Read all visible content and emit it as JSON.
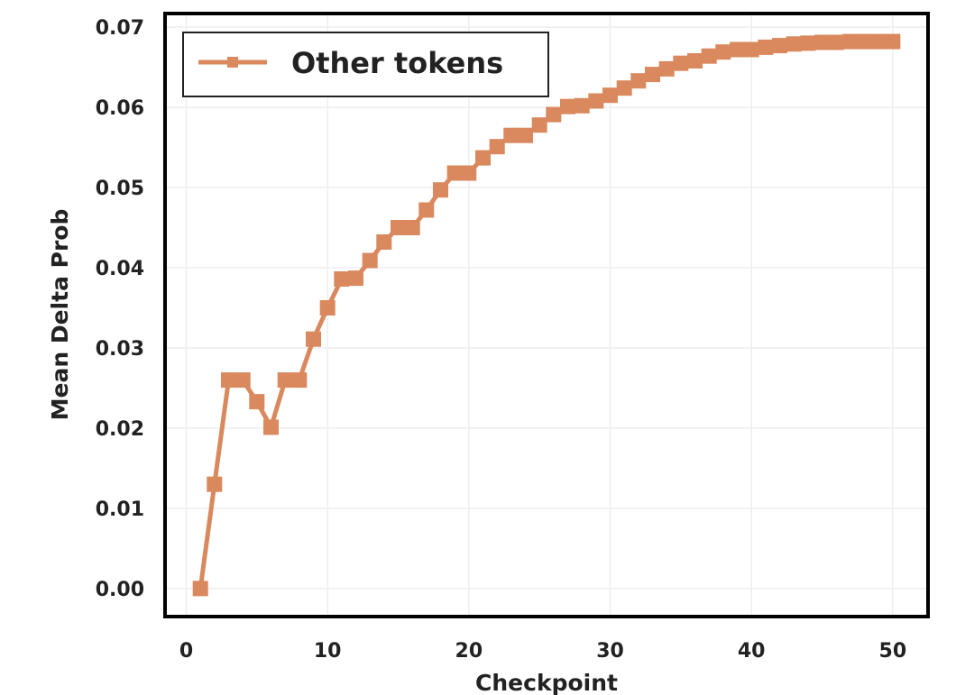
{
  "chart_data": {
    "type": "line",
    "xlabel": "Checkpoint",
    "ylabel": "Mean Delta Prob",
    "xlim": [
      -1.5,
      52.5
    ],
    "ylim": [
      -0.0035,
      0.0717
    ],
    "x_ticks": [
      0,
      10,
      20,
      30,
      40,
      50
    ],
    "x_tick_labels": [
      "0",
      "10",
      "20",
      "30",
      "40",
      "50"
    ],
    "y_ticks": [
      0.0,
      0.01,
      0.02,
      0.03,
      0.04,
      0.05,
      0.06,
      0.07
    ],
    "y_tick_labels": [
      "0.00",
      "0.01",
      "0.02",
      "0.03",
      "0.04",
      "0.05",
      "0.06",
      "0.07"
    ],
    "grid": true,
    "legend_position": "top-left",
    "colors": {
      "series": "#d9895d",
      "grid": "#eeeeee",
      "frame": "#000000",
      "text": "#222222"
    },
    "series": [
      {
        "name": "Other tokens",
        "marker": "square",
        "x": [
          1,
          2,
          3,
          4,
          5,
          6,
          7,
          8,
          9,
          10,
          11,
          12,
          13,
          14,
          15,
          16,
          17,
          18,
          19,
          20,
          21,
          22,
          23,
          24,
          25,
          26,
          27,
          28,
          29,
          30,
          31,
          32,
          33,
          34,
          35,
          36,
          37,
          38,
          39,
          40,
          41,
          42,
          43,
          44,
          45,
          46,
          47,
          48,
          49,
          50
        ],
        "y": [
          0.0,
          0.013,
          0.026,
          0.026,
          0.0233,
          0.0201,
          0.026,
          0.026,
          0.0311,
          0.035,
          0.0386,
          0.0387,
          0.0409,
          0.0432,
          0.045,
          0.045,
          0.0472,
          0.0497,
          0.0518,
          0.0518,
          0.0537,
          0.0551,
          0.0565,
          0.0565,
          0.0578,
          0.0591,
          0.0601,
          0.0602,
          0.0608,
          0.0615,
          0.0624,
          0.0633,
          0.0641,
          0.0648,
          0.0655,
          0.0658,
          0.0664,
          0.0669,
          0.0672,
          0.0672,
          0.0675,
          0.0677,
          0.0679,
          0.068,
          0.0681,
          0.0681,
          0.0682,
          0.0682,
          0.0682,
          0.0682
        ]
      }
    ]
  }
}
